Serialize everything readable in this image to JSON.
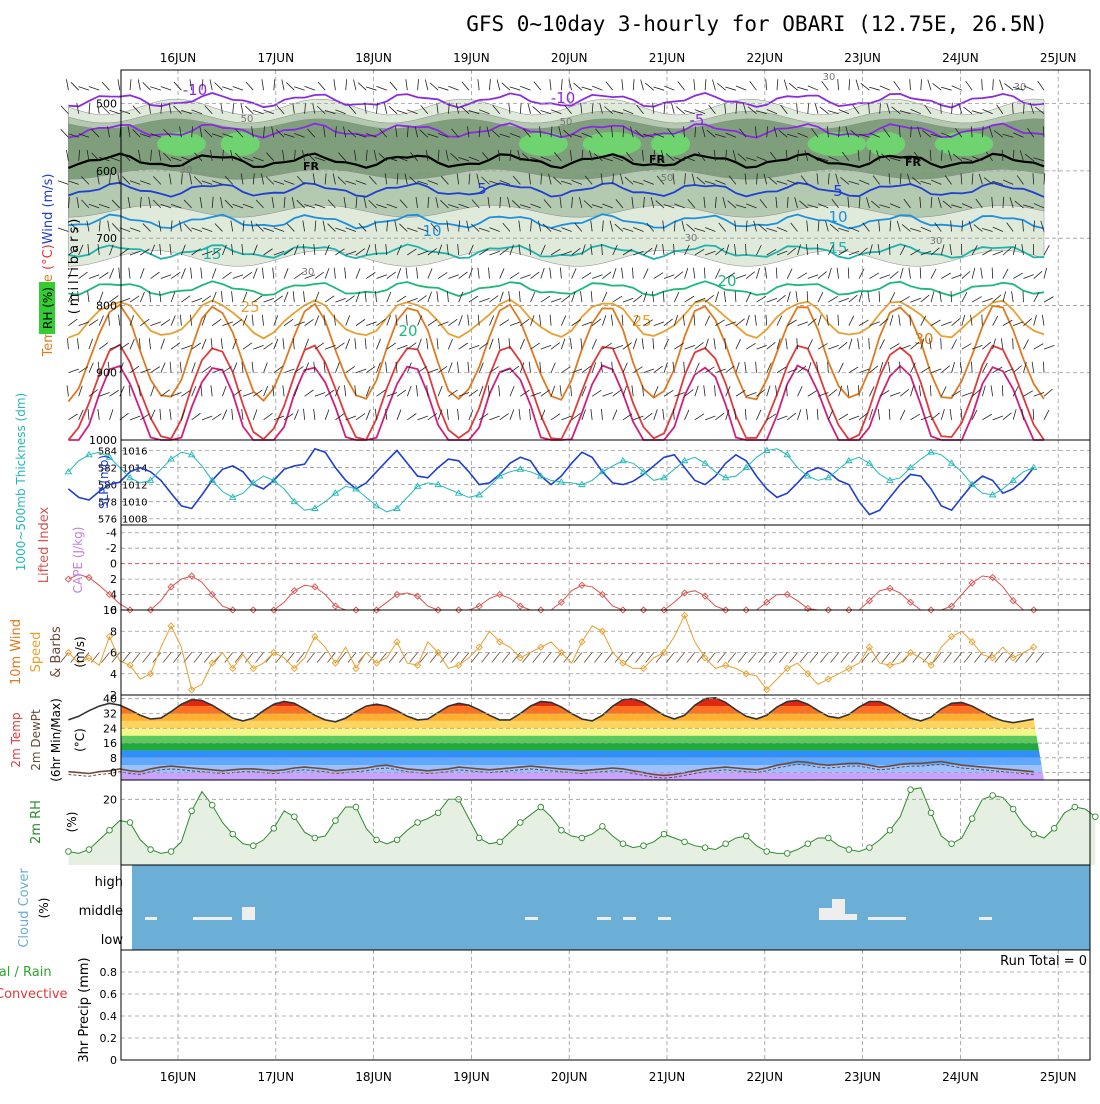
{
  "title": "GFS 0~10day 3-hourly for OBARI (12.75E, 26.5N)",
  "colors": {
    "rh_light": "#dfeadb",
    "rh_mid": "#b3c9b0",
    "rh_dark": "#7f9e7c",
    "rh_green": "#6fd36f",
    "sky": "#6baed6",
    "thickness": "#22b8b8",
    "slp": "#1f3fcf",
    "lifted": "#d9534f",
    "wind": "#e8a030",
    "dew": "#6b4b3a",
    "rh2m": "#2e8b2e"
  },
  "chart_data": [
    {
      "type": "line",
      "panel": "upper-air",
      "x": [
        "16JUN",
        "17JUN",
        "18JUN",
        "19JUN",
        "20JUN",
        "21JUN",
        "22JUN",
        "23JUN",
        "24JUN",
        "25JUN"
      ],
      "ylabel_parts": [
        "Temperature",
        " (°C)",
        "Wind",
        " (m/s)"
      ],
      "ylabel2": "(millibars)",
      "rh_label": "RH (%)",
      "ylim": [
        1000,
        450
      ],
      "yticks": [
        500,
        600,
        700,
        800,
        900,
        1000
      ],
      "isotherm_labels": [
        "-10",
        "-10",
        "-5",
        "5",
        "5",
        "10",
        "10",
        "15",
        "15",
        "20",
        "20",
        "25",
        "25",
        "30"
      ],
      "rh_contour_labels": [
        "50",
        "50",
        "30",
        "50",
        "30",
        "30",
        "30",
        "30",
        "30"
      ],
      "freezing_label": "FR",
      "isotherms": [
        {
          "name": "-10",
          "level": 495,
          "color": "#8a2be2"
        },
        {
          "name": "-5",
          "level": 540,
          "color": "#8a2be2"
        },
        {
          "name": "0",
          "level": 585,
          "color": "#000000"
        },
        {
          "name": "5",
          "level": 628,
          "color": "#1f3fcf"
        },
        {
          "name": "10",
          "level": 675,
          "color": "#1e8fdc"
        },
        {
          "name": "15",
          "level": 720,
          "color": "#20b2aa"
        },
        {
          "name": "20",
          "level": 775,
          "color": "#1fb87a"
        },
        {
          "name": "25",
          "level": 820,
          "color": "#e8a030"
        },
        {
          "name": "30",
          "level": 870,
          "color": "#e07a20"
        },
        {
          "name": "35",
          "level": 930,
          "color": "#e03a3a"
        },
        {
          "name": "40",
          "level": 960,
          "color": "#d0207a"
        }
      ]
    },
    {
      "type": "line",
      "panel": "thickness-slp",
      "ylabel_left": "1000~500mb Thickness (dm)",
      "ylabel_right": "SLP (mb)",
      "thickness_ticks": [
        "576",
        "578",
        "580",
        "582",
        "584"
      ],
      "slp_ticks": [
        "1008",
        "1010",
        "1012",
        "1014",
        "1016"
      ],
      "slp_ylim": [
        1007.5,
        1017
      ],
      "series": [
        {
          "values": [
            1011.5,
            1010.5,
            1010.2,
            1011.2,
            1012.0,
            1012.3,
            1013.5,
            1014.0,
            1013.5,
            1012.5,
            1011.0,
            1009.5,
            1009.2,
            1010.8,
            1012.5,
            1013.8,
            1014.2,
            1013.5,
            1012.0,
            1011.5,
            1012.5,
            1013.8,
            1014.2,
            1014.4,
            1016.2,
            1015.8,
            1014.0,
            1012.5,
            1011.5,
            1012.2,
            1013.5,
            1014.8,
            1016.0,
            1014.5,
            1013.0,
            1012.8,
            1014.0,
            1015.0,
            1014.8,
            1013.5,
            1012.0,
            1012.2,
            1013.2,
            1014.5,
            1015.2,
            1014.8,
            1013.0,
            1012.0,
            1013.0,
            1014.5,
            1015.8,
            1015.2,
            1013.5,
            1012.2,
            1012.0,
            1012.4,
            1013.2,
            1014.2,
            1015.2,
            1015.5,
            1014.0,
            1012.5,
            1012.0,
            1013.0,
            1014.5,
            1015.5,
            1014.8,
            1013.0,
            1011.5,
            1010.5,
            1011.0,
            1012.2,
            1013.5,
            1014.0,
            1013.5,
            1012.5,
            1012.0,
            1010.0,
            1008.5,
            1009.0,
            1010.5,
            1012.0,
            1013.2,
            1013.0,
            1011.5,
            1009.5,
            1009.0,
            1010.5,
            1012.0,
            1013.0,
            1012.5,
            1011.0,
            1011.5,
            1012.5,
            1014.0
          ]
        },
        {
          "values": [
            1013.5,
            1014.8,
            1015.5,
            1015.8,
            1015.2,
            1014.0,
            1012.8,
            1012.2,
            1012.5,
            1013.8,
            1015.0,
            1015.8,
            1015.5,
            1014.2,
            1012.5,
            1011.2,
            1010.5,
            1011.0,
            1012.2,
            1013.0,
            1012.5,
            1011.5,
            1010.0,
            1009.0,
            1009.2,
            1010.0,
            1011.0,
            1011.8,
            1011.5,
            1010.5,
            1009.5,
            1008.8,
            1009.2,
            1010.5,
            1011.8,
            1012.2,
            1012.0,
            1011.5,
            1011.0,
            1010.5,
            1010.8,
            1011.8,
            1013.0,
            1013.5,
            1013.8,
            1013.5,
            1013.0,
            1012.5,
            1012.3,
            1012.2,
            1012.0,
            1012.5,
            1013.5,
            1014.2,
            1014.8,
            1014.5,
            1013.5,
            1012.5,
            1012.8,
            1013.8,
            1014.8,
            1015.2,
            1014.5,
            1013.5,
            1012.8,
            1013.0,
            1014.0,
            1015.2,
            1016.0,
            1016.2,
            1015.5,
            1014.0,
            1013.0,
            1012.5,
            1012.8,
            1013.8,
            1014.8,
            1015.2,
            1014.5,
            1013.2,
            1012.5,
            1012.8,
            1014.0,
            1015.0,
            1015.8,
            1015.5,
            1014.5,
            1013.5,
            1012.0,
            1011.0,
            1010.8,
            1011.5,
            1012.5,
            1013.5,
            1014.0
          ]
        }
      ]
    },
    {
      "type": "line",
      "panel": "lifted-index",
      "ylabel": "Lifted Index",
      "ylabel2": "CAPE (J/kg)",
      "yticks": [
        "-4",
        "-2",
        "0",
        "2",
        "4",
        "6"
      ],
      "ylim": [
        -5,
        6
      ],
      "values": [
        2.0,
        1.4,
        1.8,
        2.8,
        4.0,
        5.2,
        6.0,
        6.0,
        6.0,
        4.8,
        3.0,
        2.0,
        1.6,
        2.4,
        4.0,
        5.5,
        6.0,
        6.0,
        6.0,
        6.0,
        6.0,
        5.0,
        3.5,
        2.8,
        3.0,
        4.0,
        5.5,
        6.0,
        6.0,
        6.0,
        6.0,
        5.0,
        4.0,
        3.8,
        4.2,
        5.5,
        6.0,
        6.0,
        6.0,
        6.0,
        5.5,
        4.5,
        4.0,
        4.5,
        5.5,
        6.0,
        6.0,
        6.0,
        5.0,
        3.5,
        2.8,
        3.0,
        4.0,
        5.5,
        6.0,
        6.0,
        6.0,
        6.0,
        6.0,
        5.0,
        3.8,
        3.5,
        4.2,
        5.5,
        6.0,
        6.0,
        6.0,
        6.0,
        5.0,
        4.0,
        4.0,
        4.8,
        5.8,
        6.0,
        6.0,
        6.0,
        6.0,
        6.0,
        4.8,
        3.5,
        3.2,
        3.8,
        5.0,
        6.0,
        6.0,
        6.0,
        5.5,
        4.0,
        2.5,
        1.6,
        1.8,
        3.0,
        4.8,
        6.0,
        6.0
      ]
    },
    {
      "type": "line",
      "panel": "10m-wind",
      "ylabel": "10m Wind Speed & Barbs",
      "yunit": "(m/s)",
      "yticks": [
        "2",
        "4",
        "6",
        "8",
        "10"
      ],
      "ylim": [
        2,
        10
      ],
      "values": [
        6.0,
        5.0,
        5.5,
        4.8,
        7.5,
        5.2,
        4.8,
        3.5,
        4.0,
        6.5,
        8.5,
        6.5,
        2.5,
        3.0,
        5.0,
        6.0,
        4.5,
        5.8,
        4.5,
        5.0,
        6.0,
        5.5,
        4.5,
        5.5,
        7.5,
        6.5,
        5.0,
        6.5,
        4.5,
        6.0,
        5.0,
        5.5,
        7.0,
        5.0,
        4.8,
        7.0,
        6.0,
        4.5,
        4.8,
        5.5,
        6.5,
        8.0,
        7.0,
        6.5,
        5.5,
        6.0,
        6.5,
        7.0,
        6.0,
        5.0,
        7.0,
        8.5,
        8.0,
        6.0,
        5.0,
        4.5,
        4.5,
        5.5,
        6.0,
        7.5,
        9.5,
        7.0,
        5.5,
        4.5,
        4.8,
        4.5,
        4.0,
        3.8,
        2.5,
        3.5,
        4.5,
        5.0,
        4.0,
        3.0,
        3.5,
        4.0,
        4.5,
        5.0,
        6.5,
        5.0,
        4.8,
        5.0,
        6.0,
        5.5,
        4.8,
        6.5,
        7.5,
        8.0,
        7.0,
        5.8,
        5.5,
        6.5,
        5.5,
        6.0,
        6.5
      ]
    },
    {
      "type": "area",
      "panel": "2m-temp",
      "ylabel": "2m Temp",
      "ylabel2": "2m DewPt",
      "ylabel3": "(6hr Min/Max)",
      "yunit": "(°C)",
      "yticks": [
        "0",
        "8",
        "16",
        "24",
        "32",
        "40"
      ],
      "ylim": [
        -4,
        42
      ],
      "temp_values": [
        28.5,
        30.5,
        33.5,
        36.0,
        37.5,
        36.5,
        34.0,
        31.0,
        29.0,
        29.5,
        33.0,
        37.0,
        39.5,
        39.0,
        36.5,
        33.0,
        29.5,
        28.0,
        29.5,
        33.5,
        37.0,
        38.5,
        37.5,
        34.5,
        31.0,
        28.5,
        27.5,
        29.5,
        33.0,
        36.0,
        37.0,
        36.0,
        33.5,
        30.5,
        28.5,
        29.0,
        32.5,
        36.0,
        37.5,
        36.5,
        34.0,
        31.0,
        28.5,
        28.5,
        32.0,
        36.0,
        38.5,
        38.0,
        35.5,
        32.0,
        29.0,
        28.0,
        31.0,
        36.0,
        39.5,
        40.0,
        38.0,
        34.5,
        31.0,
        29.0,
        31.0,
        36.5,
        40.0,
        40.5,
        38.0,
        34.0,
        30.5,
        29.0,
        31.0,
        35.5,
        38.5,
        39.0,
        37.0,
        33.5,
        30.5,
        29.5,
        31.5,
        35.5,
        38.5,
        38.5,
        36.0,
        32.5,
        29.5,
        28.0,
        30.0,
        34.5,
        37.5,
        38.0,
        36.0,
        33.0,
        30.0,
        28.0,
        27.0,
        28.0,
        29.0
      ],
      "dew_values": [
        0.5,
        0.0,
        -0.5,
        0.5,
        1.0,
        2.0,
        1.0,
        0.5,
        2.0,
        3.0,
        3.5,
        3.0,
        2.5,
        2.0,
        1.5,
        1.0,
        1.5,
        2.0,
        2.0,
        1.5,
        1.0,
        1.5,
        2.5,
        3.0,
        2.5,
        2.0,
        1.0,
        1.5,
        2.0,
        2.5,
        3.5,
        4.0,
        3.0,
        2.0,
        1.5,
        1.0,
        1.5,
        2.0,
        3.0,
        2.5,
        2.0,
        1.5,
        2.0,
        2.5,
        3.0,
        3.5,
        3.0,
        2.5,
        2.0,
        1.5,
        1.0,
        1.5,
        2.0,
        2.5,
        2.0,
        1.0,
        0.0,
        -1.0,
        -1.5,
        -1.0,
        0.0,
        1.0,
        2.0,
        2.5,
        3.0,
        2.5,
        2.0,
        1.5,
        2.5,
        4.0,
        5.0,
        6.0,
        5.5,
        4.5,
        4.0,
        4.5,
        5.0,
        5.0,
        4.0,
        3.0,
        3.5,
        4.5,
        5.0,
        5.0,
        5.5,
        6.0,
        5.0,
        4.0,
        3.5,
        3.0,
        2.5,
        2.0,
        1.5,
        1.0,
        0.5
      ],
      "dew_min": [
        -1.0,
        -1.5,
        -2.0,
        -1.0,
        -0.5,
        0.5,
        -0.5,
        -1.0,
        0.5,
        1.5,
        2.0,
        1.5,
        1.0,
        0.5,
        0.0,
        -0.5,
        0.0,
        0.5,
        0.5,
        0.0,
        -0.5,
        0.0,
        1.0,
        1.5,
        1.0,
        0.5,
        -0.5,
        0.0,
        0.5,
        1.0,
        2.0,
        2.5,
        1.5,
        0.5,
        0.0,
        -0.5,
        0.0,
        0.5,
        1.5,
        1.0,
        0.5,
        0.0,
        0.5,
        1.0,
        1.5,
        2.0,
        1.5,
        1.0,
        0.5,
        0.0,
        -0.5,
        0.0,
        0.5,
        1.0,
        0.5,
        -0.5,
        -1.5,
        -2.5,
        -3.0,
        -2.5,
        -1.5,
        -0.5,
        0.5,
        1.0,
        1.5,
        1.0,
        0.5,
        0.0,
        1.0,
        2.5,
        3.5,
        4.5,
        4.0,
        3.0,
        2.5,
        3.0,
        3.5,
        3.5,
        2.5,
        1.5,
        2.0,
        3.0,
        3.5,
        3.5,
        4.0,
        4.5,
        3.5,
        2.5,
        2.0,
        1.5,
        1.0,
        0.5,
        0.0,
        -0.5,
        -1.0
      ]
    },
    {
      "type": "line",
      "panel": "2m-rh",
      "ylabel": "2m RH",
      "yunit": "(%)",
      "yticks": [
        "20"
      ],
      "ylim": [
        3,
        25
      ],
      "values": [
        6.5,
        6.0,
        7.0,
        9.5,
        12.0,
        14.5,
        14.0,
        9.5,
        7.0,
        6.0,
        6.5,
        9.0,
        17.0,
        22.0,
        18.5,
        14.0,
        11.0,
        8.5,
        8.0,
        9.5,
        12.5,
        17.0,
        15.5,
        11.5,
        10.0,
        10.5,
        14.5,
        18.0,
        18.0,
        12.5,
        9.5,
        8.5,
        9.5,
        12.0,
        14.0,
        15.0,
        16.5,
        20.0,
        20.0,
        15.0,
        10.0,
        8.5,
        9.0,
        11.5,
        14.0,
        16.0,
        18.0,
        15.5,
        12.0,
        10.5,
        10.0,
        11.0,
        13.0,
        10.5,
        8.5,
        7.5,
        8.0,
        9.0,
        11.0,
        10.0,
        9.0,
        8.0,
        7.5,
        7.0,
        8.5,
        10.0,
        10.5,
        8.0,
        6.5,
        6.0,
        6.0,
        7.0,
        8.5,
        10.0,
        10.0,
        8.0,
        7.0,
        6.5,
        7.5,
        9.5,
        12.0,
        15.5,
        22.5,
        23.0,
        16.5,
        10.5,
        8.5,
        10.0,
        15.0,
        20.0,
        21.0,
        20.5,
        17.5,
        13.5,
        11.0,
        10.0,
        12.5,
        16.5,
        18.0,
        17.5,
        15.5
      ]
    },
    {
      "type": "bar",
      "panel": "cloud-cover",
      "ylabel": "Cloud Cover",
      "yunit": "(%)",
      "categories": [
        "low",
        "middle",
        "high"
      ],
      "labels": [
        "high",
        "middle",
        "low"
      ]
    },
    {
      "type": "bar",
      "panel": "precip",
      "ylabel": "3hr Precip (mm)",
      "legend_parts": [
        "Total / Rain",
        "Convective"
      ],
      "run_total": "Run Total = 0",
      "yticks": [
        "0",
        "0.2",
        "0.4",
        "0.6",
        "0.8"
      ],
      "ylim": [
        0,
        1
      ],
      "values": []
    }
  ]
}
